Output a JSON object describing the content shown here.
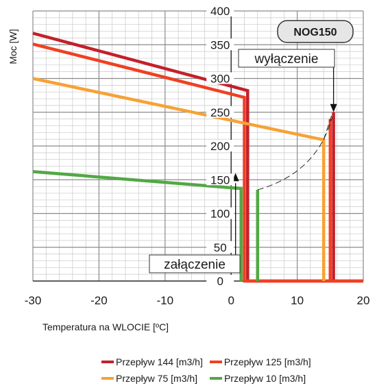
{
  "chart_data": {
    "type": "line",
    "title": "",
    "badge": "NOG150",
    "xlabel": "Temperatura na WLOCIE  [ºC]",
    "ylabel": "Moc [W]",
    "xlim": [
      -30,
      20
    ],
    "ylim": [
      0,
      400
    ],
    "x_ticks": [
      -30,
      -20,
      -10,
      0,
      10,
      20
    ],
    "y_ticks": [
      0,
      50,
      100,
      150,
      200,
      250,
      300,
      350,
      400
    ],
    "grid": true,
    "legend_position": "bottom-right",
    "annotations": [
      {
        "text": "wyłączenie",
        "points_to": {
          "x": 15.5,
          "y": 250
        }
      },
      {
        "text": "załączenie",
        "points_to": {
          "x": 1.5,
          "y": 85
        }
      }
    ],
    "series": [
      {
        "name": "Przepływ 144 [m3/h]",
        "color": "#c42029",
        "points": [
          [
            -30,
            367
          ],
          [
            2.5,
            282
          ],
          [
            2.5,
            0
          ],
          [
            20,
            0
          ]
        ],
        "on_off_return": [
          [
            15.5,
            250
          ],
          [
            15.5,
            0
          ]
        ]
      },
      {
        "name": "Przepływ 125 [m3/h]",
        "color": "#ef4023",
        "points": [
          [
            -30,
            351
          ],
          [
            2,
            272
          ],
          [
            2,
            0
          ],
          [
            20,
            0
          ]
        ],
        "on_off_return": [
          [
            15,
            240
          ],
          [
            15,
            0
          ]
        ]
      },
      {
        "name": "Przepływ 75 [m3/h]",
        "color": "#f7a234",
        "points": [
          [
            -30,
            300
          ],
          [
            14,
            209
          ],
          [
            14,
            0
          ]
        ]
      },
      {
        "name": "Przepływ 10 [m3/h]",
        "color": "#51a843",
        "points": [
          [
            -30,
            162
          ],
          [
            1.5,
            137
          ],
          [
            1.5,
            0
          ]
        ],
        "on_off_return": [
          [
            4,
            135
          ],
          [
            4,
            0
          ]
        ]
      }
    ]
  }
}
